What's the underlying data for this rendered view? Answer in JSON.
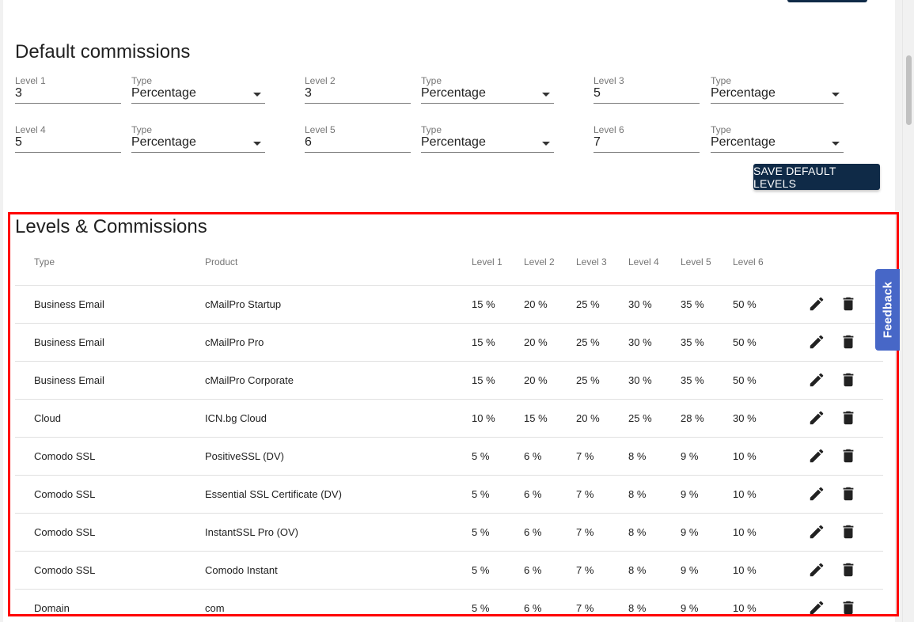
{
  "default_commissions": {
    "title": "Default commissions",
    "type_label": "Type",
    "levels": [
      {
        "label": "Level 1",
        "value": "3",
        "type": "Percentage"
      },
      {
        "label": "Level 2",
        "value": "3",
        "type": "Percentage"
      },
      {
        "label": "Level 3",
        "value": "5",
        "type": "Percentage"
      },
      {
        "label": "Level 4",
        "value": "5",
        "type": "Percentage"
      },
      {
        "label": "Level 5",
        "value": "6",
        "type": "Percentage"
      },
      {
        "label": "Level 6",
        "value": "7",
        "type": "Percentage"
      }
    ],
    "save_label": "SAVE DEFAULT LEVELS"
  },
  "levels_commissions": {
    "title": "Levels & Commissions",
    "headers": {
      "type": "Type",
      "product": "Product",
      "l1": "Level 1",
      "l2": "Level 2",
      "l3": "Level 3",
      "l4": "Level 4",
      "l5": "Level 5",
      "l6": "Level 6"
    },
    "rows": [
      {
        "type": "Business Email",
        "product": "cMailPro Startup",
        "l1": "15 %",
        "l2": "20 %",
        "l3": "25 %",
        "l4": "30 %",
        "l5": "35 %",
        "l6": "50 %"
      },
      {
        "type": "Business Email",
        "product": "cMailPro Pro",
        "l1": "15 %",
        "l2": "20 %",
        "l3": "25 %",
        "l4": "30 %",
        "l5": "35 %",
        "l6": "50 %"
      },
      {
        "type": "Business Email",
        "product": "cMailPro Corporate",
        "l1": "15 %",
        "l2": "20 %",
        "l3": "25 %",
        "l4": "30 %",
        "l5": "35 %",
        "l6": "50 %"
      },
      {
        "type": "Cloud",
        "product": "ICN.bg Cloud",
        "l1": "10 %",
        "l2": "15 %",
        "l3": "20 %",
        "l4": "25 %",
        "l5": "28 %",
        "l6": "30 %"
      },
      {
        "type": "Comodo SSL",
        "product": "PositiveSSL (DV)",
        "l1": "5 %",
        "l2": "6 %",
        "l3": "7 %",
        "l4": "8 %",
        "l5": "9 %",
        "l6": "10 %"
      },
      {
        "type": "Comodo SSL",
        "product": "Essential SSL Certificate (DV)",
        "l1": "5 %",
        "l2": "6 %",
        "l3": "7 %",
        "l4": "8 %",
        "l5": "9 %",
        "l6": "10 %"
      },
      {
        "type": "Comodo SSL",
        "product": "InstantSSL Pro (OV)",
        "l1": "5 %",
        "l2": "6 %",
        "l3": "7 %",
        "l4": "8 %",
        "l5": "9 %",
        "l6": "10 %"
      },
      {
        "type": "Comodo SSL",
        "product": "Comodo Instant",
        "l1": "5 %",
        "l2": "6 %",
        "l3": "7 %",
        "l4": "8 %",
        "l5": "9 %",
        "l6": "10 %"
      },
      {
        "type": "Domain",
        "product": "com",
        "l1": "5 %",
        "l2": "6 %",
        "l3": "7 %",
        "l4": "8 %",
        "l5": "9 %",
        "l6": "10 %"
      }
    ],
    "row_actions": {
      "edit_icon": "pencil-icon",
      "delete_icon": "trash-icon"
    }
  },
  "feedback": {
    "label": "Feedback",
    "color": "#4767c7"
  },
  "colors": {
    "primary_button": "#0f2a47",
    "highlight_border": "#ff0000"
  }
}
